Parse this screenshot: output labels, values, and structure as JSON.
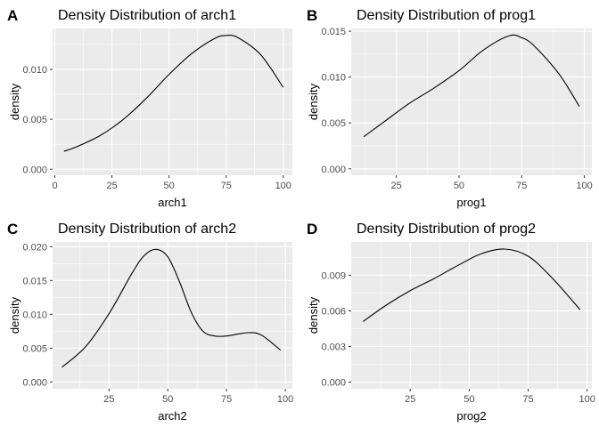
{
  "chart_data": [
    {
      "tag": "A",
      "type": "line",
      "title": "Density Distribution of arch1",
      "xlabel": "arch1",
      "ylabel": "density",
      "xlim": [
        -1,
        104
      ],
      "ylim": [
        -0.0006,
        0.0141
      ],
      "xticks": [
        0,
        25,
        50,
        75,
        100
      ],
      "xtick_labels": [
        "0",
        "25",
        "50",
        "75",
        "100"
      ],
      "yticks": [
        0,
        0.005,
        0.01
      ],
      "ytick_labels": [
        "0.000",
        "0.005",
        "0.010"
      ],
      "series": [
        {
          "x": [
            4,
            10,
            20,
            30,
            40,
            50,
            60,
            70,
            75,
            80,
            90,
            100
          ],
          "y": [
            0.0018,
            0.0023,
            0.0034,
            0.005,
            0.0071,
            0.0095,
            0.0116,
            0.0131,
            0.0134,
            0.0132,
            0.0115,
            0.0082
          ]
        }
      ]
    },
    {
      "tag": "B",
      "type": "line",
      "title": "Density Distribution of prog1",
      "xlabel": "prog1",
      "ylabel": "density",
      "xlim": [
        7,
        103
      ],
      "ylim": [
        -0.0007,
        0.0153
      ],
      "xticks": [
        25,
        50,
        75,
        100
      ],
      "xtick_labels": [
        "25",
        "50",
        "75",
        "100"
      ],
      "yticks": [
        0,
        0.005,
        0.01,
        0.015
      ],
      "ytick_labels": [
        "0.000",
        "0.005",
        "0.010",
        "0.015"
      ],
      "series": [
        {
          "x": [
            12,
            20,
            30,
            40,
            50,
            60,
            70,
            75,
            80,
            90,
            98
          ],
          "y": [
            0.0035,
            0.0051,
            0.0071,
            0.0088,
            0.0107,
            0.013,
            0.0145,
            0.0143,
            0.0134,
            0.0103,
            0.0068
          ]
        }
      ]
    },
    {
      "tag": "C",
      "type": "line",
      "title": "Density Distribution of arch2",
      "xlabel": "arch2",
      "ylabel": "density",
      "xlim": [
        1,
        103
      ],
      "ylim": [
        -0.001,
        0.0207
      ],
      "xticks": [
        25,
        50,
        75,
        100
      ],
      "xtick_labels": [
        "25",
        "50",
        "75",
        "100"
      ],
      "yticks": [
        0,
        0.005,
        0.01,
        0.015,
        0.02
      ],
      "ytick_labels": [
        "0.000",
        "0.005",
        "0.010",
        "0.015",
        "0.020"
      ],
      "series": [
        {
          "x": [
            5,
            15,
            25,
            35,
            40,
            45,
            50,
            55,
            60,
            65,
            70,
            75,
            80,
            85,
            90,
            98
          ],
          "y": [
            0.0022,
            0.0052,
            0.0101,
            0.0162,
            0.0187,
            0.0196,
            0.0185,
            0.0148,
            0.0103,
            0.0075,
            0.0068,
            0.0068,
            0.0071,
            0.0073,
            0.0069,
            0.0047
          ]
        }
      ]
    },
    {
      "tag": "D",
      "type": "line",
      "title": "Density Distribution of prog2",
      "xlabel": "prog2",
      "ylabel": "density",
      "xlim": [
        0,
        102
      ],
      "ylim": [
        -0.00056,
        0.0118
      ],
      "xticks": [
        25,
        50,
        75,
        100
      ],
      "xtick_labels": [
        "25",
        "50",
        "75",
        "100"
      ],
      "yticks": [
        0,
        0.003,
        0.006,
        0.009
      ],
      "ytick_labels": [
        "0.000",
        "0.003",
        "0.006",
        "0.009"
      ],
      "series": [
        {
          "x": [
            5,
            15,
            25,
            35,
            45,
            55,
            65,
            75,
            85,
            97
          ],
          "y": [
            0.0051,
            0.0065,
            0.0077,
            0.0087,
            0.0098,
            0.0108,
            0.0112,
            0.0106,
            0.0088,
            0.0061
          ]
        }
      ]
    }
  ]
}
